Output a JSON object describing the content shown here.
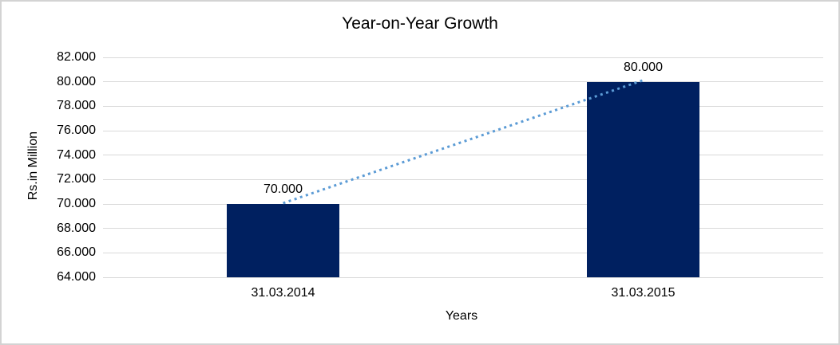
{
  "chart_data": {
    "type": "bar",
    "title": "Year-on-Year Growth",
    "xlabel": "Years",
    "ylabel": "Rs.in Million",
    "categories": [
      "31.03.2014",
      "31.03.2015"
    ],
    "values": [
      70000,
      80000
    ],
    "data_labels": [
      "70.000",
      "80.000"
    ],
    "ylim": [
      64000,
      82000
    ],
    "ytick_step": 2000,
    "ytick_labels": [
      "64.000",
      "66.000",
      "68.000",
      "70.000",
      "72.000",
      "74.000",
      "76.000",
      "78.000",
      "80.000",
      "82.000"
    ],
    "grid": "horizontal",
    "legend": "none",
    "bar_color": "#002060",
    "gridline_color": "#d9d9d9",
    "trendline": {
      "style": "dotted",
      "color": "#5b9bd5",
      "from_value": 70000,
      "to_value": 80000
    },
    "background": "#ffffff",
    "border_color": "#d3d3d3"
  }
}
